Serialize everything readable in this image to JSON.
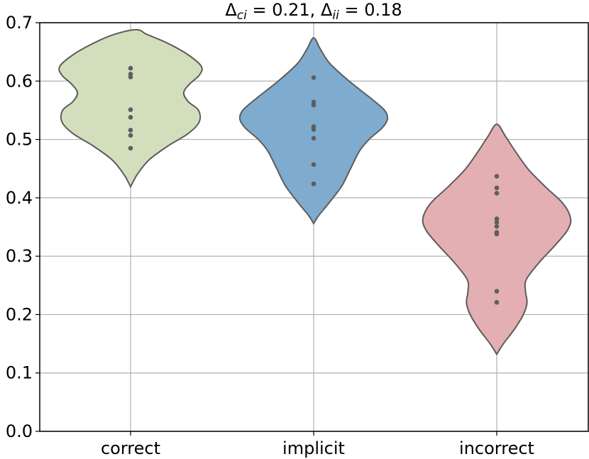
{
  "chart_data": {
    "type": "violin",
    "title": {
      "delta_symbol": "Δ",
      "sub1": "ci",
      "value1": "0.21",
      "sub2": "ii",
      "value2": "0.18"
    },
    "xlabel": "",
    "ylabel": "",
    "ylim": [
      0.0,
      0.7
    ],
    "grid": true,
    "y_ticks": [
      {
        "value": 0.0,
        "label": "0.0"
      },
      {
        "value": 0.1,
        "label": "0.1"
      },
      {
        "value": 0.2,
        "label": "0.2"
      },
      {
        "value": 0.3,
        "label": "0.3"
      },
      {
        "value": 0.4,
        "label": "0.4"
      },
      {
        "value": 0.5,
        "label": "0.5"
      },
      {
        "value": 0.6,
        "label": "0.6"
      },
      {
        "value": 0.7,
        "label": "0.7"
      }
    ],
    "categories": [
      "correct",
      "implicit",
      "incorrect"
    ],
    "series": [
      {
        "name": "correct",
        "color": "#d3dfbc",
        "points": [
          0.622,
          0.612,
          0.607,
          0.551,
          0.538,
          0.516,
          0.507,
          0.485
        ],
        "range": [
          0.419,
          0.688
        ],
        "density": [
          [
            0.419,
            0.0
          ],
          [
            0.44,
            0.09
          ],
          [
            0.465,
            0.25
          ],
          [
            0.49,
            0.52
          ],
          [
            0.51,
            0.78
          ],
          [
            0.53,
            0.93
          ],
          [
            0.55,
            0.92
          ],
          [
            0.565,
            0.78
          ],
          [
            0.58,
            0.72
          ],
          [
            0.595,
            0.8
          ],
          [
            0.61,
            0.93
          ],
          [
            0.625,
            0.96
          ],
          [
            0.645,
            0.78
          ],
          [
            0.665,
            0.5
          ],
          [
            0.68,
            0.22
          ],
          [
            0.688,
            0.08
          ]
        ]
      },
      {
        "name": "implicit",
        "color": "#7eabce",
        "points": [
          0.606,
          0.564,
          0.559,
          0.522,
          0.517,
          0.502,
          0.457,
          0.424
        ],
        "range": [
          0.356,
          0.674
        ],
        "density": [
          [
            0.356,
            0.0
          ],
          [
            0.37,
            0.07
          ],
          [
            0.39,
            0.2
          ],
          [
            0.42,
            0.38
          ],
          [
            0.45,
            0.5
          ],
          [
            0.48,
            0.62
          ],
          [
            0.5,
            0.75
          ],
          [
            0.52,
            0.93
          ],
          [
            0.535,
            1.0
          ],
          [
            0.55,
            0.96
          ],
          [
            0.57,
            0.78
          ],
          [
            0.6,
            0.48
          ],
          [
            0.63,
            0.22
          ],
          [
            0.655,
            0.09
          ],
          [
            0.674,
            0.0
          ]
        ]
      },
      {
        "name": "incorrect",
        "color": "#e3afb2",
        "points": [
          0.437,
          0.417,
          0.408,
          0.364,
          0.358,
          0.351,
          0.341,
          0.338,
          0.24,
          0.221
        ],
        "range": [
          0.132,
          0.526
        ],
        "density": [
          [
            0.132,
            0.0
          ],
          [
            0.15,
            0.09
          ],
          [
            0.175,
            0.24
          ],
          [
            0.2,
            0.36
          ],
          [
            0.22,
            0.41
          ],
          [
            0.24,
            0.39
          ],
          [
            0.26,
            0.4
          ],
          [
            0.29,
            0.58
          ],
          [
            0.32,
            0.8
          ],
          [
            0.345,
            0.96
          ],
          [
            0.365,
            1.0
          ],
          [
            0.39,
            0.9
          ],
          [
            0.42,
            0.65
          ],
          [
            0.45,
            0.42
          ],
          [
            0.48,
            0.25
          ],
          [
            0.505,
            0.12
          ],
          [
            0.526,
            0.0
          ]
        ]
      }
    ]
  }
}
